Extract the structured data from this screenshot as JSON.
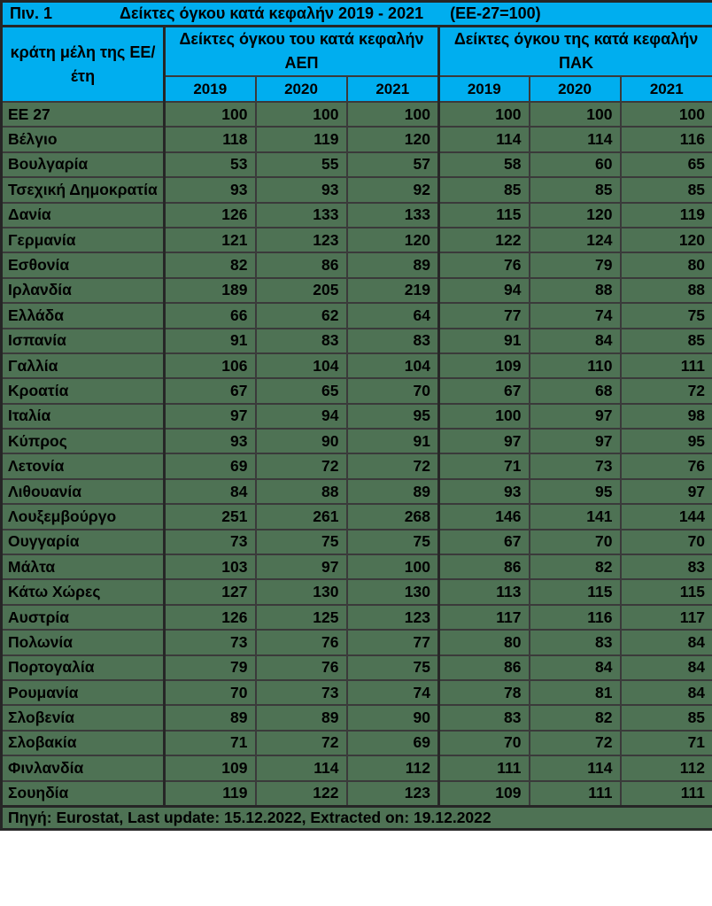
{
  "title": {
    "label": "Πιν. 1",
    "text": "Δείκτες όγκου κατά κεφαλήν 2019 - 2021",
    "note": "(ΕΕ-27=100)"
  },
  "header": {
    "row_header_line1": "κράτη μέλη της ΕΕ/",
    "row_header_line2": "έτη",
    "group_gdp_line1": "Δείκτες όγκου του κατά κεφαλήν",
    "group_gdp_line2": "ΑΕΠ",
    "group_aic_line1": "Δείκτες όγκου της κατά κεφαλήν",
    "group_aic_line2": "ΠΑΚ",
    "years": [
      "2019",
      "2020",
      "2021",
      "2019",
      "2020",
      "2021"
    ]
  },
  "rows": [
    {
      "country": "ΕΕ 27",
      "gdp": [
        100,
        100,
        100
      ],
      "aic": [
        100,
        100,
        100
      ]
    },
    {
      "country": "Βέλγιο",
      "gdp": [
        118,
        119,
        120
      ],
      "aic": [
        114,
        114,
        116
      ]
    },
    {
      "country": "Βουλγαρία",
      "gdp": [
        53,
        55,
        57
      ],
      "aic": [
        58,
        60,
        65
      ]
    },
    {
      "country": "Τσεχική Δημοκρατία",
      "gdp": [
        93,
        93,
        92
      ],
      "aic": [
        85,
        85,
        85
      ]
    },
    {
      "country": "Δανία",
      "gdp": [
        126,
        133,
        133
      ],
      "aic": [
        115,
        120,
        119
      ]
    },
    {
      "country": "Γερμανία",
      "gdp": [
        121,
        123,
        120
      ],
      "aic": [
        122,
        124,
        120
      ]
    },
    {
      "country": "Εσθονία",
      "gdp": [
        82,
        86,
        89
      ],
      "aic": [
        76,
        79,
        80
      ]
    },
    {
      "country": "Ιρλανδία",
      "gdp": [
        189,
        205,
        219
      ],
      "aic": [
        94,
        88,
        88
      ]
    },
    {
      "country": "Ελλάδα",
      "gdp": [
        66,
        62,
        64
      ],
      "aic": [
        77,
        74,
        75
      ]
    },
    {
      "country": "Ισπανία",
      "gdp": [
        91,
        83,
        83
      ],
      "aic": [
        91,
        84,
        85
      ]
    },
    {
      "country": "Γαλλία",
      "gdp": [
        106,
        104,
        104
      ],
      "aic": [
        109,
        110,
        111
      ]
    },
    {
      "country": "Κροατία",
      "gdp": [
        67,
        65,
        70
      ],
      "aic": [
        67,
        68,
        72
      ]
    },
    {
      "country": "Ιταλία",
      "gdp": [
        97,
        94,
        95
      ],
      "aic": [
        100,
        97,
        98
      ]
    },
    {
      "country": "Κύπρος",
      "gdp": [
        93,
        90,
        91
      ],
      "aic": [
        97,
        97,
        95
      ]
    },
    {
      "country": "Λετονία",
      "gdp": [
        69,
        72,
        72
      ],
      "aic": [
        71,
        73,
        76
      ]
    },
    {
      "country": "Λιθουανία",
      "gdp": [
        84,
        88,
        89
      ],
      "aic": [
        93,
        95,
        97
      ]
    },
    {
      "country": "Λουξεμβούργο",
      "gdp": [
        251,
        261,
        268
      ],
      "aic": [
        146,
        141,
        144
      ]
    },
    {
      "country": "Ουγγαρία",
      "gdp": [
        73,
        75,
        75
      ],
      "aic": [
        67,
        70,
        70
      ]
    },
    {
      "country": "Μάλτα",
      "gdp": [
        103,
        97,
        100
      ],
      "aic": [
        86,
        82,
        83
      ]
    },
    {
      "country": "Κάτω Χώρες",
      "gdp": [
        127,
        130,
        130
      ],
      "aic": [
        113,
        115,
        115
      ]
    },
    {
      "country": "Αυστρία",
      "gdp": [
        126,
        125,
        123
      ],
      "aic": [
        117,
        116,
        117
      ]
    },
    {
      "country": "Πολωνία",
      "gdp": [
        73,
        76,
        77
      ],
      "aic": [
        80,
        83,
        84
      ]
    },
    {
      "country": "Πορτογαλία",
      "gdp": [
        79,
        76,
        75
      ],
      "aic": [
        86,
        84,
        84
      ]
    },
    {
      "country": "Ρουμανία",
      "gdp": [
        70,
        73,
        74
      ],
      "aic": [
        78,
        81,
        84
      ]
    },
    {
      "country": "Σλοβενία",
      "gdp": [
        89,
        89,
        90
      ],
      "aic": [
        83,
        82,
        85
      ]
    },
    {
      "country": "Σλοβακία",
      "gdp": [
        71,
        72,
        69
      ],
      "aic": [
        70,
        72,
        71
      ]
    },
    {
      "country": "Φινλανδία",
      "gdp": [
        109,
        114,
        112
      ],
      "aic": [
        111,
        114,
        112
      ]
    },
    {
      "country": "Σουηδία",
      "gdp": [
        119,
        122,
        123
      ],
      "aic": [
        109,
        111,
        111
      ]
    }
  ],
  "footer": {
    "text": "Πηγή: Eurostat, Last update: 15.12.2022, Extracted on: 19.12.2022"
  },
  "colors": {
    "header_bg": "#00AEEF",
    "row_bg": "#4E7254",
    "border": "#3A3A3A",
    "outer": "#262626",
    "text": "#000000"
  }
}
